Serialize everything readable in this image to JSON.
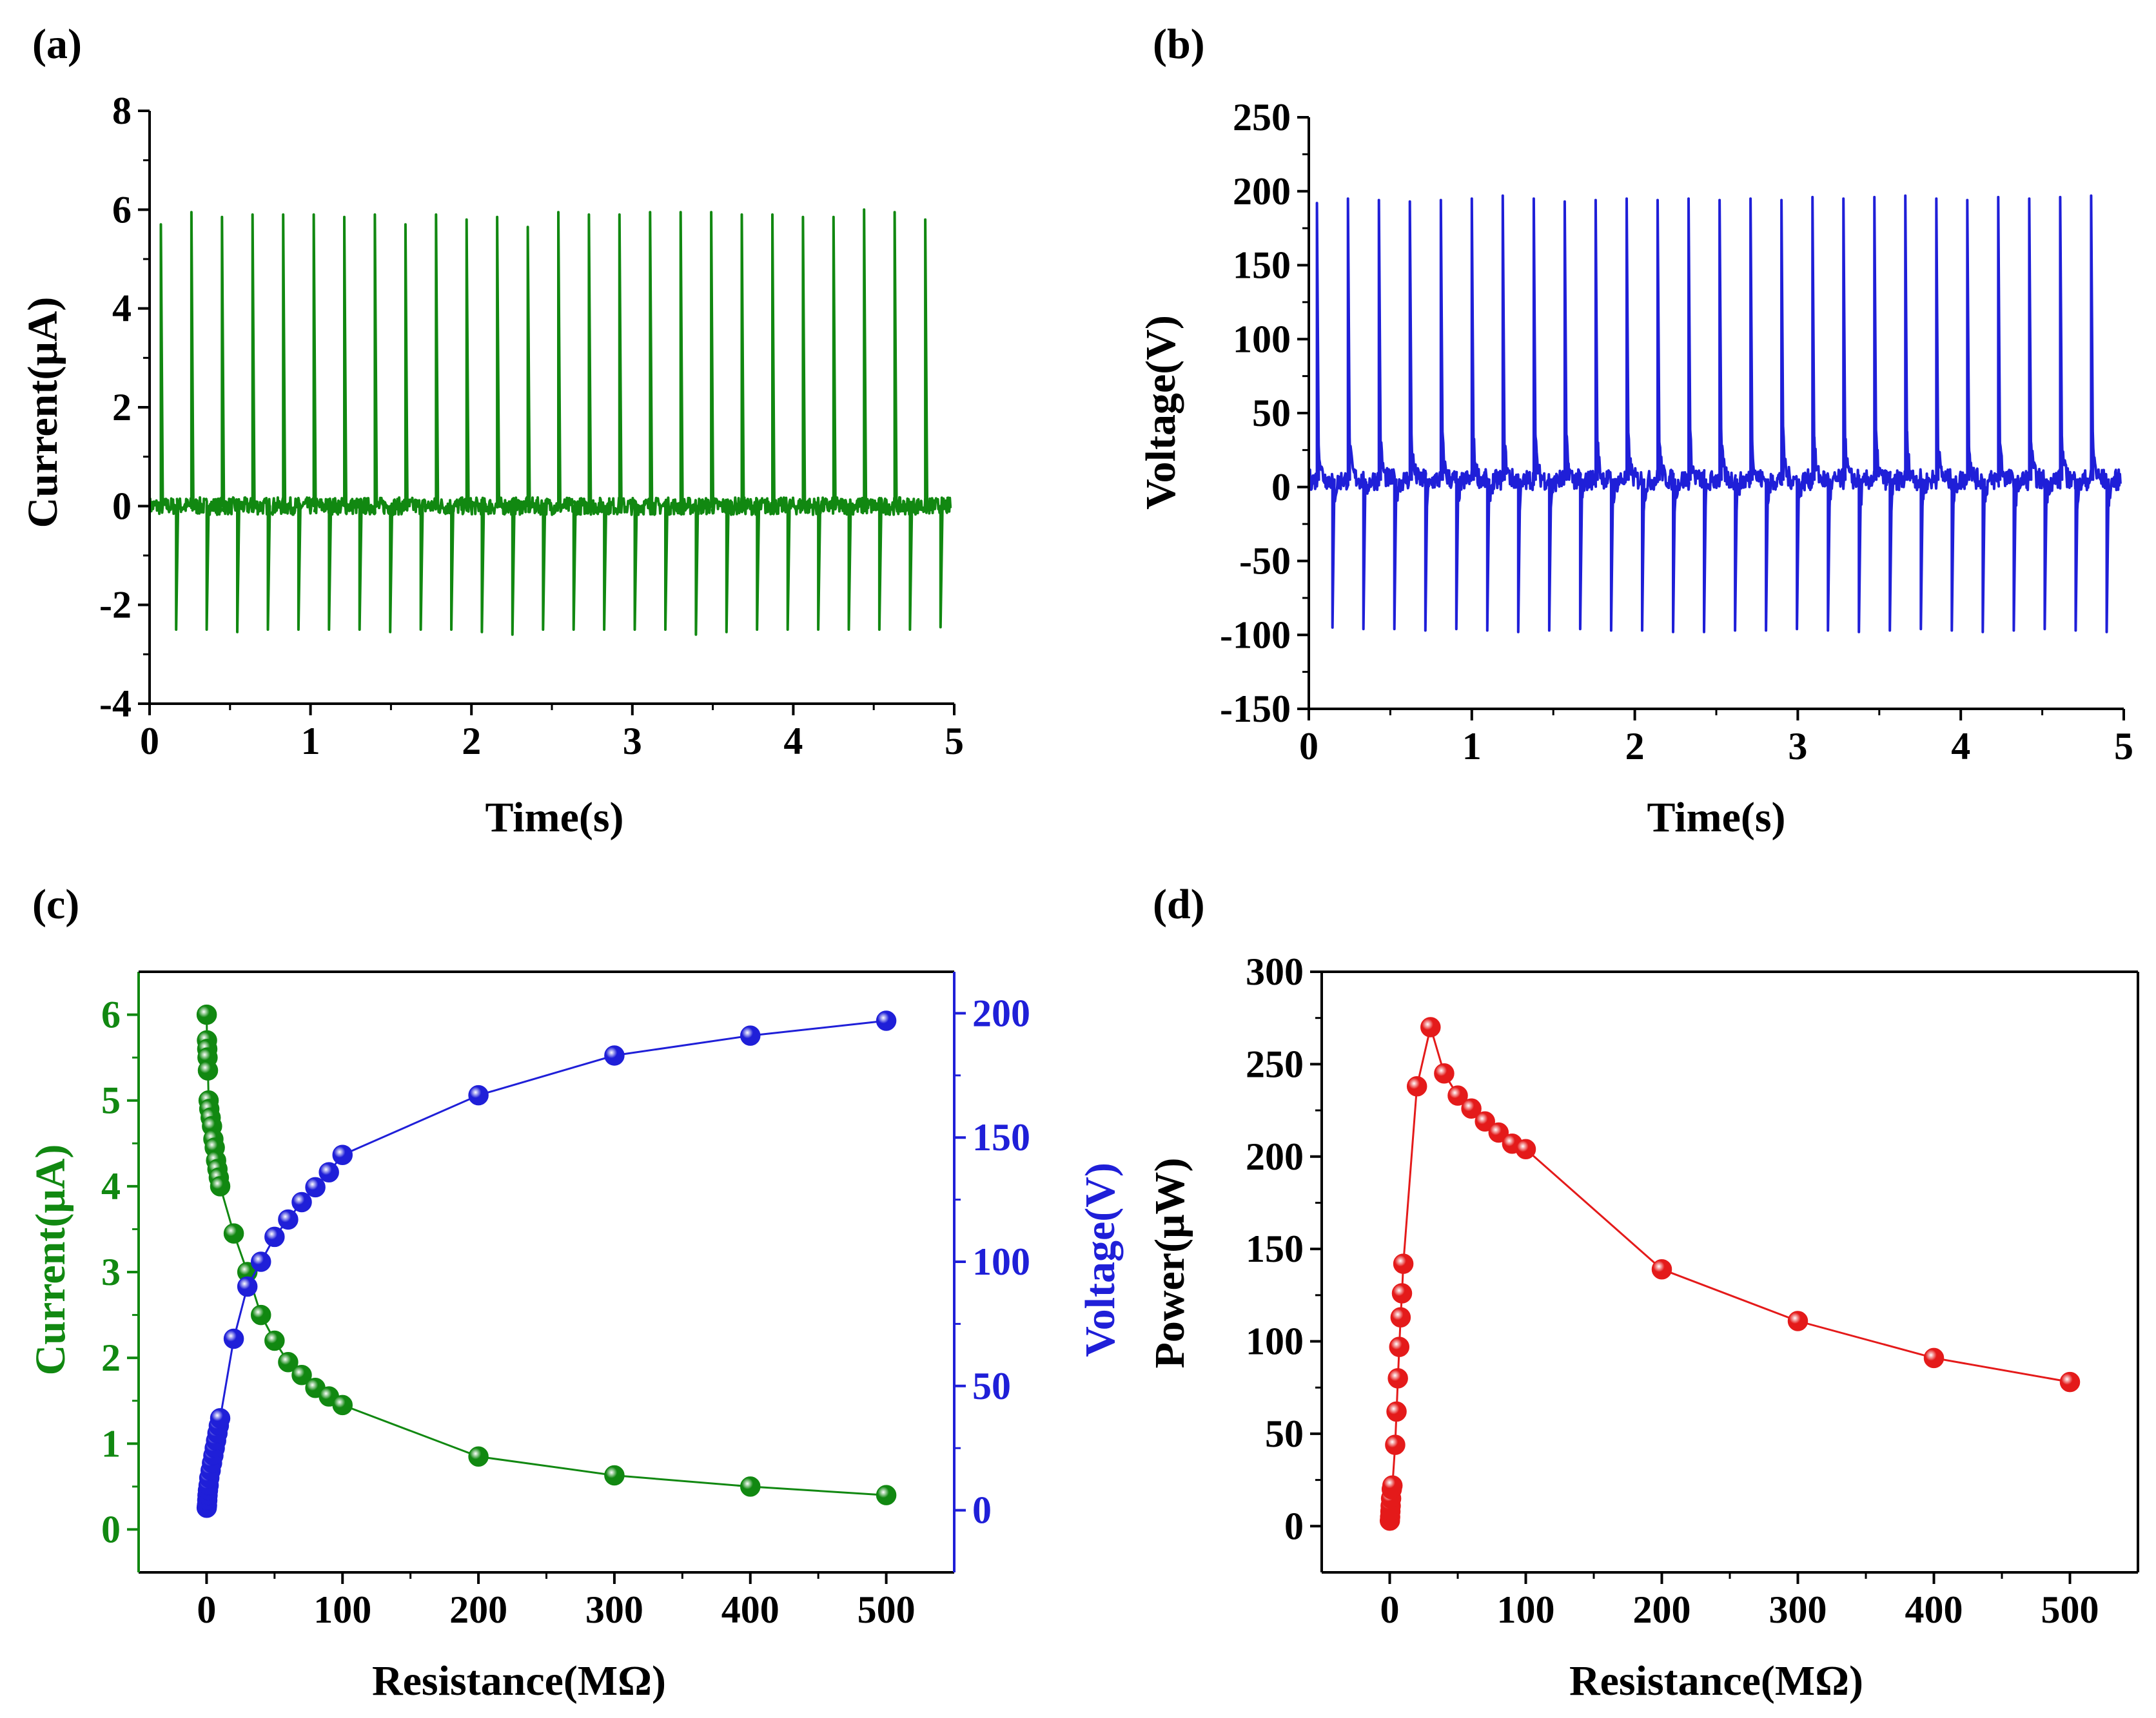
{
  "colors": {
    "current": "#118811",
    "voltage": "#1f1fd8",
    "power": "#e41a1a",
    "axis": "#000000"
  },
  "chart_data": [
    {
      "id": "a",
      "type": "line",
      "panel_label": "(a)",
      "xlabel": "Time(s)",
      "ylabel": "Current(μA)",
      "xlim": [
        0,
        5
      ],
      "ylim": [
        -4,
        8
      ],
      "xticks": [
        0,
        1,
        2,
        3,
        4,
        5
      ],
      "yticks": [
        -4,
        -2,
        0,
        2,
        4,
        6,
        8
      ],
      "series": [
        {
          "name": "Current",
          "signal": "periodic pulses",
          "pulse_times": [
            0.07,
            0.26,
            0.45,
            0.64,
            0.83,
            1.02,
            1.21,
            1.4,
            1.59,
            1.78,
            1.97,
            2.16,
            2.35,
            2.54,
            2.73,
            2.92,
            3.11,
            3.3,
            3.49,
            3.68,
            3.87,
            4.06,
            4.25,
            4.44,
            4.63,
            4.82
          ],
          "peak_values": [
            5.7,
            5.95,
            5.85,
            5.9,
            5.9,
            5.9,
            5.85,
            5.9,
            5.7,
            5.9,
            5.8,
            5.85,
            5.65,
            5.95,
            5.9,
            5.9,
            5.95,
            5.95,
            5.95,
            5.9,
            5.9,
            5.85,
            5.85,
            6.0,
            5.95,
            5.8
          ],
          "valley_values": [
            -2.5,
            -2.5,
            -2.55,
            -2.5,
            -2.5,
            -2.5,
            -2.5,
            -2.55,
            -2.5,
            -2.5,
            -2.55,
            -2.6,
            -2.5,
            -2.5,
            -2.5,
            -2.5,
            -2.5,
            -2.6,
            -2.55,
            -2.5,
            -2.5,
            -2.5,
            -2.5,
            -2.5,
            -2.5,
            -2.45
          ],
          "baseline": 0
        }
      ]
    },
    {
      "id": "b",
      "type": "line",
      "panel_label": "(b)",
      "xlabel": "Time(s)",
      "ylabel": "Voltage(V)",
      "xlim": [
        0,
        5
      ],
      "ylim": [
        -150,
        250
      ],
      "xticks": [
        0,
        1,
        2,
        3,
        4,
        5
      ],
      "yticks": [
        -150,
        -100,
        -50,
        0,
        50,
        100,
        150,
        200,
        250
      ],
      "series": [
        {
          "name": "Voltage",
          "signal": "periodic pulses",
          "pulse_times": [
            0.05,
            0.24,
            0.43,
            0.62,
            0.81,
            1.0,
            1.19,
            1.38,
            1.57,
            1.76,
            1.95,
            2.14,
            2.33,
            2.52,
            2.71,
            2.9,
            3.09,
            3.28,
            3.47,
            3.66,
            3.85,
            4.04,
            4.23,
            4.42,
            4.61,
            4.8
          ],
          "peak_values": [
            192,
            195,
            194,
            193,
            194,
            195,
            197,
            195,
            193,
            194,
            195,
            194,
            195,
            194,
            195,
            194,
            196,
            195,
            196,
            197,
            195,
            194,
            196,
            195,
            196,
            197
          ],
          "valley_values": [
            -95,
            -96,
            -96,
            -97,
            -96,
            -97,
            -98,
            -97,
            -96,
            -97,
            -97,
            -98,
            -98,
            -97,
            -97,
            -96,
            -97,
            -98,
            -97,
            -96,
            -97,
            -98,
            -97,
            -96,
            -97,
            -98
          ],
          "baseline": 5
        }
      ]
    },
    {
      "id": "c",
      "type": "scatter",
      "panel_label": "(c)",
      "xlabel": "Resistance(MΩ)",
      "ylabel": "Current(μA)",
      "ylabel_right": "Voltage(V)",
      "xlim": [
        -50,
        550
      ],
      "ylim": [
        -0.5,
        6.5
      ],
      "ylim_right": [
        -25,
        216.7
      ],
      "xticks": [
        0,
        100,
        200,
        300,
        400,
        500
      ],
      "yticks": [
        0,
        1,
        2,
        3,
        4,
        5,
        6
      ],
      "yticks_right": [
        0,
        50,
        100,
        150,
        200
      ],
      "x": [
        0.1,
        0.3,
        0.5,
        0.7,
        1,
        1.5,
        2,
        3,
        4,
        5,
        6,
        7,
        8,
        9,
        10,
        20,
        30,
        40,
        50,
        60,
        70,
        80,
        90,
        100,
        200,
        300,
        400,
        500
      ],
      "series": [
        {
          "name": "Current",
          "axis": "left",
          "values": [
            6.0,
            5.7,
            5.6,
            5.5,
            5.35,
            5.0,
            4.9,
            4.8,
            4.7,
            4.55,
            4.45,
            4.3,
            4.2,
            4.1,
            4.0,
            3.45,
            3.0,
            2.5,
            2.2,
            1.95,
            1.8,
            1.65,
            1.55,
            1.45,
            0.85,
            0.63,
            0.5,
            0.4
          ]
        },
        {
          "name": "Voltage",
          "axis": "right",
          "values": [
            1,
            2,
            4,
            6,
            8,
            10,
            13,
            16,
            19,
            22,
            25,
            28,
            31,
            34,
            37,
            69,
            90,
            100,
            110,
            117,
            124,
            130,
            136,
            143,
            167,
            183,
            191,
            197
          ]
        }
      ]
    },
    {
      "id": "d",
      "type": "line",
      "panel_label": "(d)",
      "xlabel": "Resistance(MΩ)",
      "ylabel": "Power(μW)",
      "xlim": [
        -50,
        550
      ],
      "ylim": [
        -25,
        300
      ],
      "xticks": [
        0,
        100,
        200,
        300,
        400,
        500
      ],
      "yticks": [
        0,
        50,
        100,
        150,
        200,
        250,
        300
      ],
      "x": [
        0.1,
        0.3,
        0.5,
        0.7,
        1,
        1.5,
        2,
        4,
        5,
        6,
        7,
        8,
        9,
        10,
        20,
        30,
        40,
        50,
        60,
        70,
        80,
        90,
        100,
        200,
        300,
        400,
        500
      ],
      "series": [
        {
          "name": "Power",
          "values": [
            3,
            5,
            8,
            11,
            15,
            20,
            22,
            44,
            62,
            80,
            97,
            113,
            126,
            142,
            238,
            270,
            245,
            233,
            226,
            219,
            213,
            207,
            204,
            139,
            111,
            91,
            78
          ]
        }
      ]
    }
  ]
}
